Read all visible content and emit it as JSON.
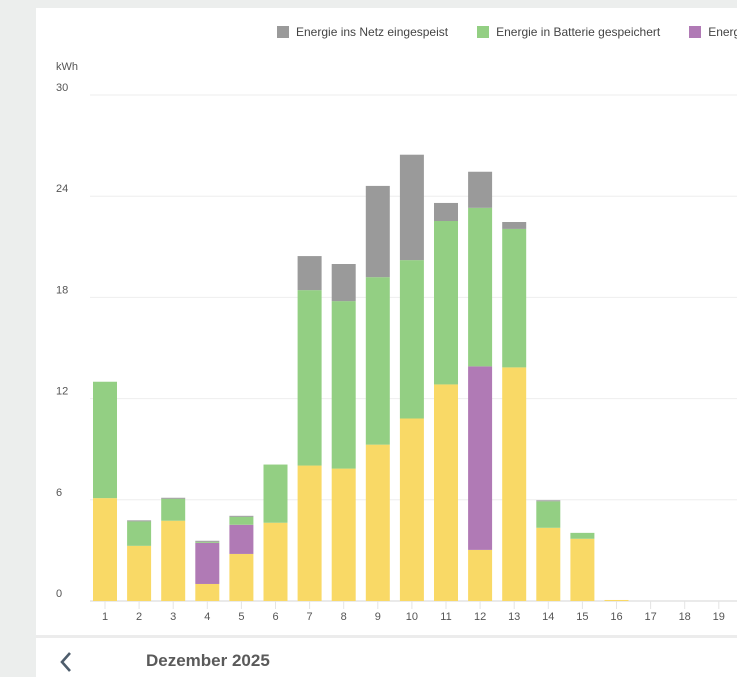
{
  "chart_data": {
    "type": "bar",
    "stacked": true,
    "ylabel": "kWh",
    "ylim": [
      0,
      30
    ],
    "yticks": [
      0,
      6,
      12,
      18,
      24,
      30
    ],
    "grid": true,
    "legend_placement": "top-right",
    "categories": [
      "1",
      "2",
      "3",
      "4",
      "5",
      "6",
      "7",
      "8",
      "9",
      "10",
      "11",
      "12",
      "13",
      "14",
      "15",
      "16",
      "17",
      "18",
      "19"
    ],
    "series": [
      {
        "color": "#f9d966",
        "values": [
          6.1,
          3.27,
          4.76,
          1.01,
          2.79,
          4.64,
          8.03,
          7.85,
          9.27,
          10.82,
          12.84,
          3.03,
          13.85,
          4.34,
          3.69,
          0.06,
          0,
          0,
          0
        ]
      },
      {
        "name": "Energie",
        "color": "#b07ab5",
        "values": [
          0,
          0,
          0,
          2.44,
          1.73,
          0,
          0,
          0,
          0,
          0,
          0,
          10.88,
          0,
          0,
          0,
          0,
          0,
          0,
          0
        ]
      },
      {
        "name": "Energie in Batterie gespeichert",
        "color": "#93cf83",
        "values": [
          6.9,
          1.45,
          1.3,
          0.06,
          0.47,
          3.45,
          10.4,
          9.93,
          9.93,
          9.39,
          9.69,
          9.4,
          8.21,
          1.57,
          0.35,
          0,
          0,
          0,
          0
        ]
      },
      {
        "name": "Energie ins Netz eingespeist",
        "color": "#9a9a9a",
        "values": [
          0,
          0.06,
          0.06,
          0.06,
          0.06,
          0,
          2.02,
          2.2,
          5.41,
          6.25,
          1.07,
          2.14,
          0.41,
          0.06,
          0,
          0,
          0,
          0,
          0
        ]
      }
    ]
  },
  "legend": [
    {
      "label": "Energie ins Netz eingespeist",
      "color": "#9a9a9a"
    },
    {
      "label": "Energie in Batterie gespeichert",
      "color": "#93cf83"
    },
    {
      "label": "Energie",
      "color": "#b07ab5"
    }
  ],
  "nav": {
    "month_label": "Dezember 2025",
    "prev_icon": "chevron-left-icon"
  }
}
